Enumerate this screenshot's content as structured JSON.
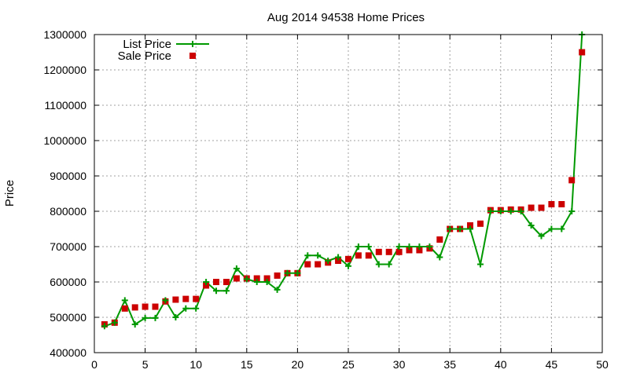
{
  "chart_data": {
    "type": "line",
    "title": "Aug 2014 94538 Home Prices",
    "xlabel": "",
    "ylabel": "Price",
    "xlim": [
      0,
      50
    ],
    "ylim": [
      400000,
      1300000
    ],
    "x_ticks": [
      "0",
      "5",
      "10",
      "15",
      "20",
      "25",
      "30",
      "35",
      "40",
      "45",
      "50"
    ],
    "y_ticks": [
      "400000",
      "500000",
      "600000",
      "700000",
      "800000",
      "900000",
      "1000000",
      "1100000",
      "1200000",
      "1300000"
    ],
    "grid": true,
    "legend_position": "top-left",
    "series": [
      {
        "name": "List Price",
        "style": "line+plus",
        "color": "#009900",
        "x": [
          1,
          2,
          3,
          4,
          5,
          6,
          7,
          8,
          9,
          10,
          11,
          12,
          13,
          14,
          15,
          16,
          17,
          18,
          19,
          20,
          21,
          22,
          23,
          24,
          25,
          26,
          27,
          28,
          29,
          30,
          31,
          32,
          33,
          34,
          35,
          36,
          37,
          38,
          39,
          40,
          41,
          42,
          43,
          44,
          45,
          46,
          47,
          48
        ],
        "y": [
          475000,
          485000,
          548000,
          480000,
          498000,
          498000,
          548000,
          500000,
          525000,
          525000,
          600000,
          575000,
          575000,
          638000,
          608000,
          600000,
          600000,
          578000,
          625000,
          625000,
          675000,
          675000,
          660000,
          670000,
          645000,
          700000,
          700000,
          650000,
          650000,
          700000,
          700000,
          700000,
          700000,
          670000,
          750000,
          750000,
          750000,
          650000,
          800000,
          800000,
          800000,
          800000,
          760000,
          730000,
          750000,
          750000,
          800000,
          1300000
        ]
      },
      {
        "name": "Sale Price",
        "style": "square-markers",
        "color": "#cc0000",
        "x": [
          1,
          2,
          3,
          4,
          5,
          6,
          7,
          8,
          9,
          10,
          11,
          12,
          13,
          14,
          15,
          16,
          17,
          18,
          19,
          20,
          21,
          22,
          23,
          24,
          25,
          26,
          27,
          28,
          29,
          30,
          31,
          32,
          33,
          34,
          35,
          36,
          37,
          38,
          39,
          40,
          41,
          42,
          43,
          44,
          45,
          46,
          47,
          48
        ],
        "y": [
          480000,
          485000,
          525000,
          528000,
          530000,
          530000,
          545000,
          550000,
          552000,
          552000,
          590000,
          600000,
          600000,
          610000,
          610000,
          610000,
          610000,
          618000,
          625000,
          625000,
          650000,
          650000,
          655000,
          660000,
          665000,
          675000,
          675000,
          685000,
          685000,
          685000,
          690000,
          690000,
          695000,
          720000,
          750000,
          750000,
          760000,
          765000,
          803000,
          803000,
          805000,
          805000,
          810000,
          810000,
          820000,
          820000,
          888000,
          1250000
        ]
      }
    ]
  }
}
